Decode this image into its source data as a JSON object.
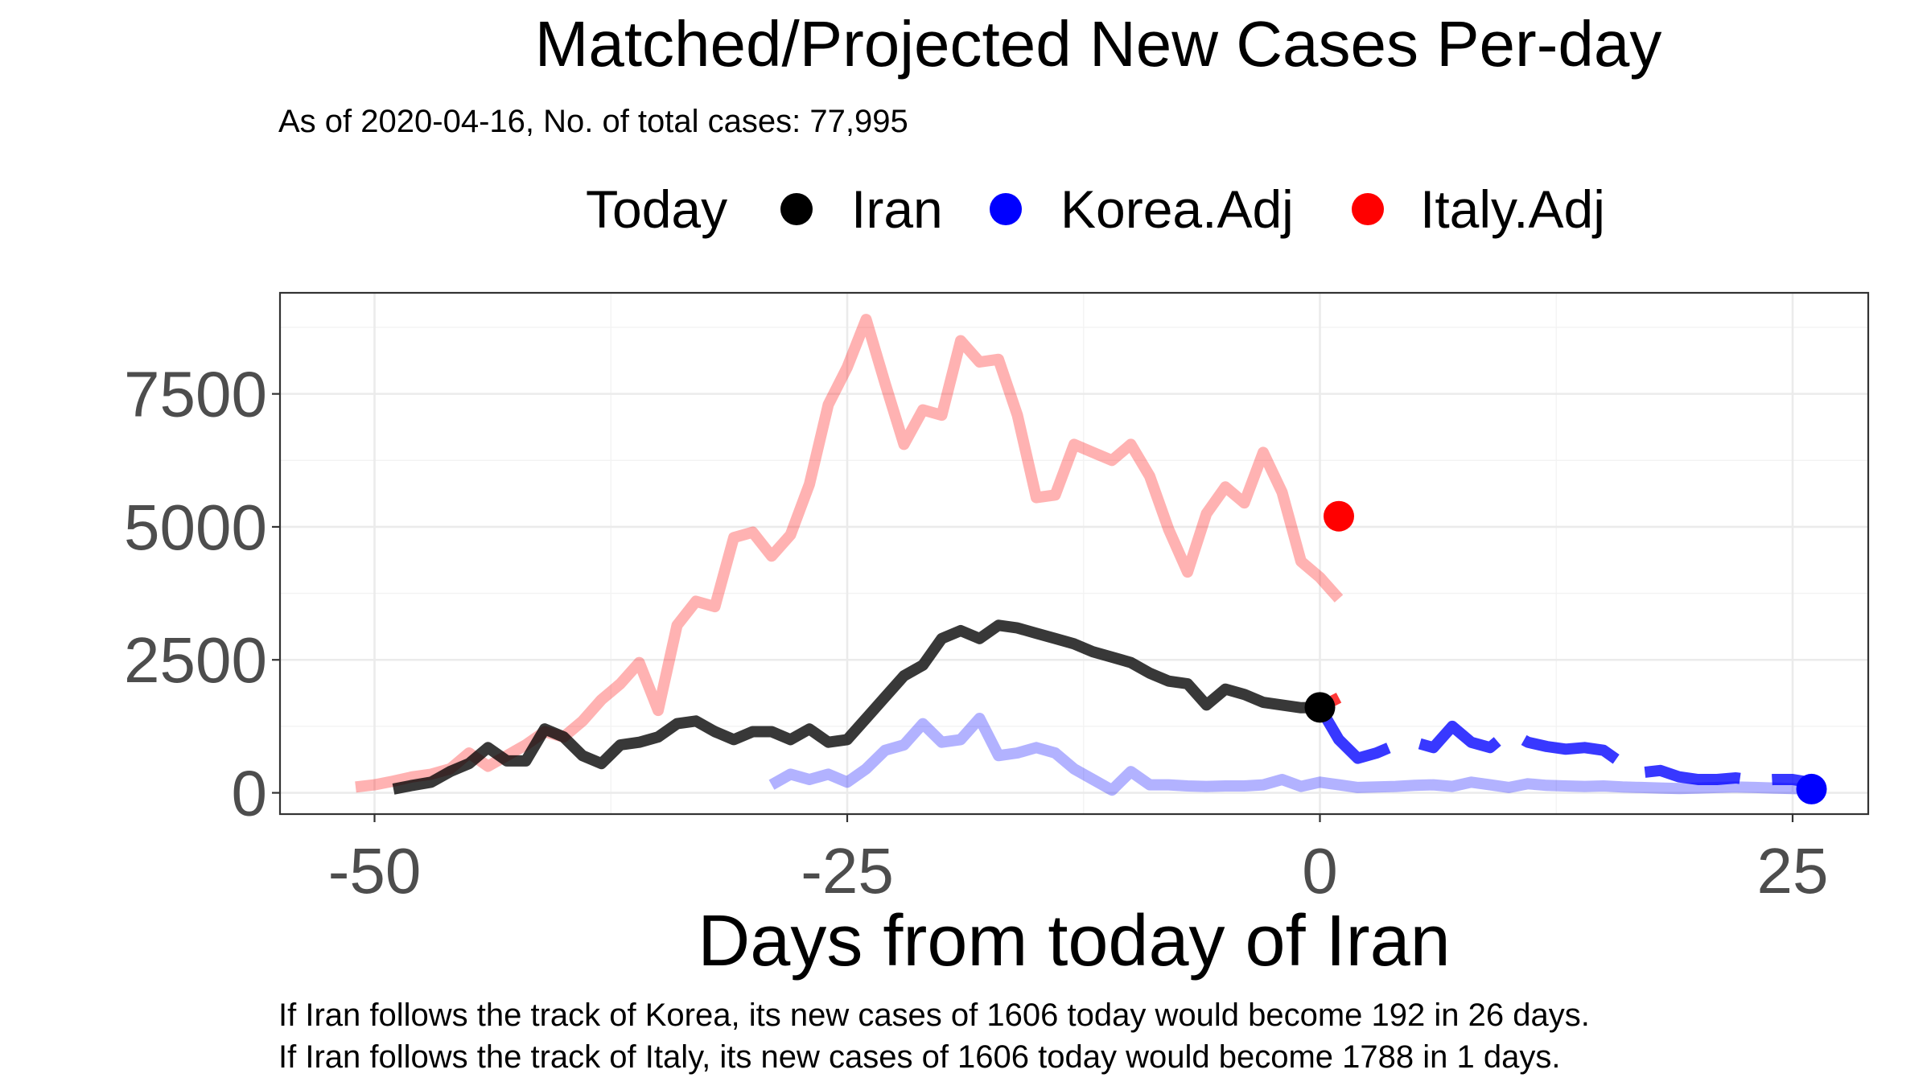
{
  "chart_data": {
    "type": "line",
    "title": "Matched/Projected New Cases Per-day",
    "subtitle": "As of 2020-04-16, No. of total cases: 77,995",
    "xlabel": "Days from today of Iran",
    "ylabel": "",
    "xlim": [
      -55,
      29
    ],
    "ylim": [
      -400,
      9400
    ],
    "x_ticks": [
      -50,
      -25,
      0,
      25
    ],
    "x_tick_labels": [
      "-50",
      "-25",
      "0",
      "25"
    ],
    "y_ticks": [
      0,
      2500,
      5000,
      7500
    ],
    "y_tick_labels": [
      "0",
      "2500",
      "5000",
      "7500"
    ],
    "grid": true,
    "legend": {
      "title": "Today",
      "position": "top",
      "entries": [
        {
          "label": "Iran",
          "color": "#000000"
        },
        {
          "label": "Korea.Adj",
          "color": "#0000ff"
        },
        {
          "label": "Italy.Adj",
          "color": "#ff0000"
        }
      ]
    },
    "series": [
      {
        "name": "Italy.Adj",
        "color": "#ff0000",
        "role": "matched",
        "x": [
          -51,
          -50,
          -49,
          -48,
          -47,
          -46,
          -45,
          -44,
          -43,
          -42,
          -41,
          -40,
          -39,
          -38,
          -37,
          -36,
          -35,
          -34,
          -33,
          -32,
          -31,
          -30,
          -29,
          -28,
          -27,
          -26,
          -25,
          -24,
          -23,
          -22,
          -21,
          -20,
          -19,
          -18,
          -17,
          -16,
          -15,
          -14,
          -13,
          -12,
          -11,
          -10,
          -9,
          -8,
          -7,
          -6,
          -5,
          -4,
          -3,
          -2,
          -1,
          0,
          1
        ],
        "y": [
          110,
          150,
          220,
          300,
          350,
          450,
          750,
          500,
          700,
          900,
          1150,
          1050,
          1350,
          1750,
          2050,
          2450,
          1550,
          3150,
          3600,
          3500,
          4800,
          4900,
          4450,
          4850,
          5800,
          7300,
          8000,
          8900,
          7700,
          6550,
          7200,
          7100,
          8500,
          8100,
          8150,
          7100,
          5550,
          5600,
          6550,
          6400,
          6250,
          6550,
          5950,
          4950,
          4150,
          5250,
          5750,
          5450,
          6400,
          5650,
          4350,
          4050,
          3650
        ]
      },
      {
        "name": "Korea.Adj",
        "color": "#0000ff",
        "role": "matched",
        "x": [
          -29,
          -28,
          -27,
          -26,
          -25,
          -24,
          -23,
          -22,
          -21,
          -20,
          -19,
          -18,
          -17,
          -16,
          -15,
          -14,
          -13,
          -12,
          -11,
          -10,
          -9,
          -8,
          -7,
          -6,
          -5,
          -4,
          -3,
          -2,
          -1,
          0,
          1,
          2,
          3,
          4,
          5,
          6,
          7,
          8,
          9,
          10,
          11,
          12,
          13,
          14,
          15,
          16,
          17,
          18,
          19,
          20,
          21,
          22,
          23,
          24,
          25,
          26
        ],
        "y": [
          150,
          350,
          250,
          350,
          200,
          450,
          800,
          900,
          1300,
          950,
          1000,
          1400,
          700,
          750,
          850,
          750,
          450,
          250,
          50,
          400,
          150,
          150,
          130,
          120,
          130,
          130,
          150,
          250,
          120,
          200,
          150,
          100,
          110,
          120,
          140,
          150,
          120,
          200,
          150,
          100,
          170,
          140,
          130,
          120,
          130,
          110,
          100,
          90,
          80,
          90,
          100,
          110,
          100,
          90,
          80,
          70
        ]
      },
      {
        "name": "Iran",
        "color": "#000000",
        "role": "actual",
        "x": [
          -49,
          -48,
          -47,
          -46,
          -45,
          -44,
          -43,
          -42,
          -41,
          -40,
          -39,
          -38,
          -37,
          -36,
          -35,
          -34,
          -33,
          -32,
          -31,
          -30,
          -29,
          -28,
          -27,
          -26,
          -25,
          -24,
          -23,
          -22,
          -21,
          -20,
          -19,
          -18,
          -17,
          -16,
          -15,
          -14,
          -13,
          -12,
          -11,
          -10,
          -9,
          -8,
          -7,
          -6,
          -5,
          -4,
          -3,
          -2,
          -1,
          0
        ],
        "y": [
          70,
          140,
          200,
          400,
          550,
          850,
          600,
          600,
          1200,
          1050,
          700,
          550,
          900,
          950,
          1050,
          1300,
          1350,
          1150,
          1000,
          1150,
          1150,
          1000,
          1200,
          950,
          1000,
          1400,
          1800,
          2200,
          2400,
          2900,
          3050,
          2900,
          3150,
          3100,
          3000,
          2900,
          2800,
          2650,
          2550,
          2450,
          2250,
          2100,
          2050,
          1650,
          1950,
          1850,
          1700,
          1650,
          1600,
          1606
        ]
      },
      {
        "name": "Korea.Adj",
        "color": "#0000ff",
        "role": "projected",
        "x": [
          0,
          1,
          2,
          3,
          4,
          5,
          6,
          7,
          8,
          9,
          10,
          11,
          12,
          13,
          14,
          15,
          16,
          17,
          18,
          19,
          20,
          21,
          22,
          23,
          24,
          25,
          26
        ],
        "y": [
          1606,
          1000,
          650,
          750,
          900,
          950,
          850,
          1250,
          950,
          850,
          1150,
          950,
          870,
          820,
          850,
          800,
          550,
          380,
          420,
          300,
          250,
          250,
          280,
          230,
          250,
          250,
          192
        ]
      },
      {
        "name": "Italy.Adj",
        "color": "#ff0000",
        "role": "projected",
        "x": [
          0,
          1
        ],
        "y": [
          1606,
          1788
        ]
      }
    ],
    "markers": [
      {
        "name": "Iran",
        "x": 0,
        "y": 1606,
        "color": "#000000"
      },
      {
        "name": "Italy.Adj",
        "x": 1,
        "y": 5200,
        "color": "#ff0000"
      },
      {
        "name": "Korea.Adj",
        "x": 26,
        "y": 70,
        "color": "#0000ff"
      }
    ]
  },
  "captions": {
    "korea": "If Iran follows the track of Korea, its new cases of 1606 today would become 192 in 26 days.",
    "italy": "If Iran follows the track of Italy, its new cases of 1606 today would become 1788 in 1 days."
  }
}
